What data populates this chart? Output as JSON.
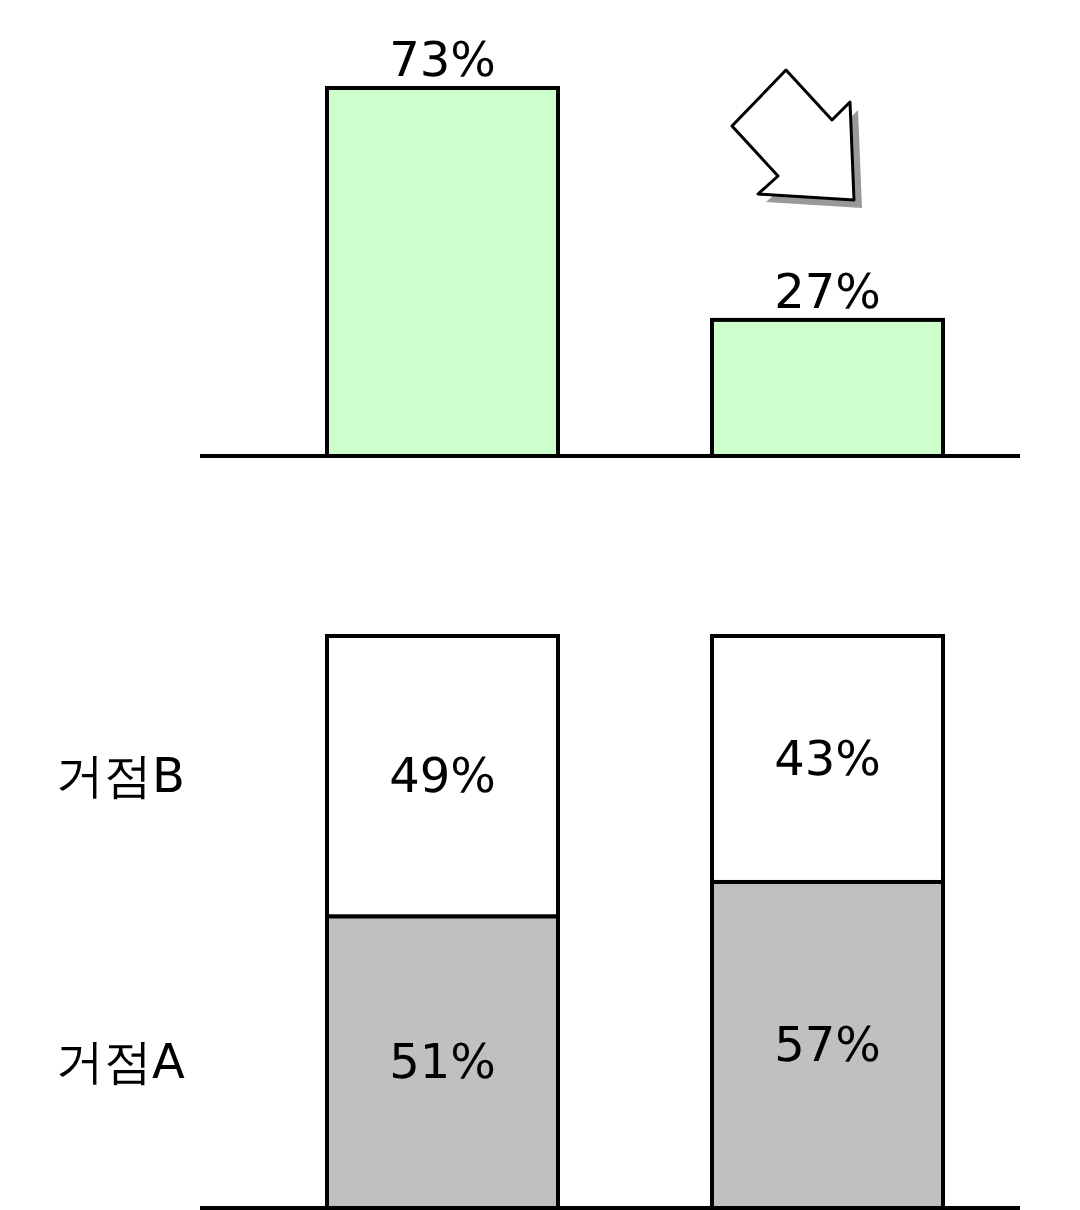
{
  "chart_data": [
    {
      "type": "bar",
      "categories": [
        null,
        null
      ],
      "values": [
        73,
        27
      ],
      "value_labels": [
        "73%",
        "27%"
      ],
      "color": "#ccffcc"
    },
    {
      "type": "bar",
      "categories": [
        null,
        null
      ],
      "stacked": true,
      "series": [
        {
          "name": "거점A",
          "color": "#c0c0c0",
          "values": [
            51,
            57
          ],
          "value_labels": [
            "51%",
            "57%"
          ]
        },
        {
          "name": "거점B",
          "color": "#ffffff",
          "values": [
            49,
            43
          ],
          "value_labels": [
            "49%",
            "43%"
          ]
        }
      ]
    }
  ]
}
